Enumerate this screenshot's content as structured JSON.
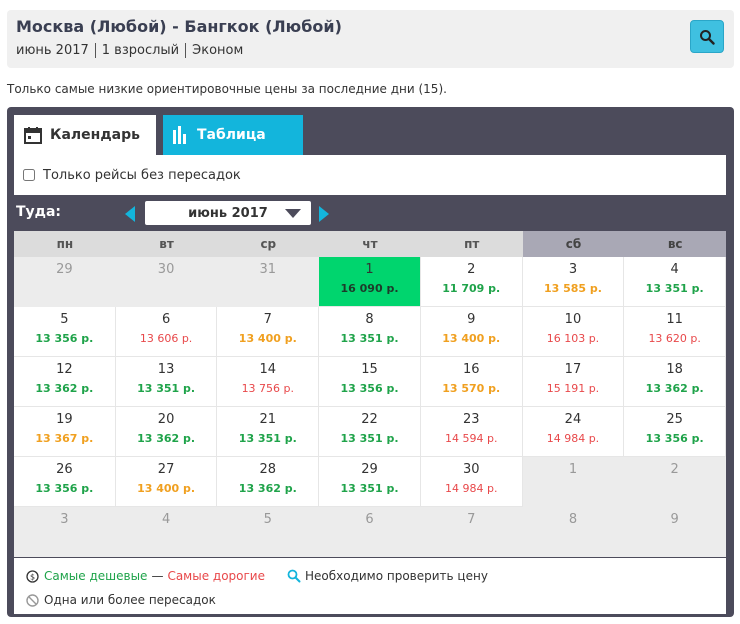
{
  "header": {
    "title": "Москва (Любой) - Бангкок (Любой)",
    "date": "июнь 2017",
    "passengers": "1 взрослый",
    "cabin": "Эконом"
  },
  "info_text": "Только самые низкие ориентировочные цены за последние дни (15).",
  "tabs": {
    "calendar": "Календарь",
    "table": "Таблица"
  },
  "filter": {
    "direct_only_label": "Только рейсы без пересадок",
    "direct_only_checked": false
  },
  "direction_label": "Туда:",
  "month_selector": "июнь 2017",
  "weekdays": [
    "пн",
    "вт",
    "ср",
    "чт",
    "пт",
    "сб",
    "вс"
  ],
  "weeks": [
    [
      {
        "day": "29",
        "other": true
      },
      {
        "day": "30",
        "other": true
      },
      {
        "day": "31",
        "other": true
      },
      {
        "day": "1",
        "price": "16 090 р.",
        "level": "selected"
      },
      {
        "day": "2",
        "price": "11 709 р.",
        "level": "green"
      },
      {
        "day": "3",
        "price": "13 585 р.",
        "level": "orange"
      },
      {
        "day": "4",
        "price": "13 351 р.",
        "level": "green"
      }
    ],
    [
      {
        "day": "5",
        "price": "13 356 р.",
        "level": "green"
      },
      {
        "day": "6",
        "price": "13 606 р.",
        "level": "red"
      },
      {
        "day": "7",
        "price": "13 400 р.",
        "level": "orange"
      },
      {
        "day": "8",
        "price": "13 351 р.",
        "level": "green"
      },
      {
        "day": "9",
        "price": "13 400 р.",
        "level": "orange"
      },
      {
        "day": "10",
        "price": "16 103 р.",
        "level": "red"
      },
      {
        "day": "11",
        "price": "13 620 р.",
        "level": "red"
      }
    ],
    [
      {
        "day": "12",
        "price": "13 362 р.",
        "level": "green"
      },
      {
        "day": "13",
        "price": "13 351 р.",
        "level": "green"
      },
      {
        "day": "14",
        "price": "13 756 р.",
        "level": "red"
      },
      {
        "day": "15",
        "price": "13 356 р.",
        "level": "green"
      },
      {
        "day": "16",
        "price": "13 570 р.",
        "level": "orange"
      },
      {
        "day": "17",
        "price": "15 191 р.",
        "level": "red"
      },
      {
        "day": "18",
        "price": "13 362 р.",
        "level": "green"
      }
    ],
    [
      {
        "day": "19",
        "price": "13 367 р.",
        "level": "orange"
      },
      {
        "day": "20",
        "price": "13 362 р.",
        "level": "green"
      },
      {
        "day": "21",
        "price": "13 351 р.",
        "level": "green"
      },
      {
        "day": "22",
        "price": "13 351 р.",
        "level": "green"
      },
      {
        "day": "23",
        "price": "14 594 р.",
        "level": "red"
      },
      {
        "day": "24",
        "price": "14 984 р.",
        "level": "red"
      },
      {
        "day": "25",
        "price": "13 356 р.",
        "level": "green"
      }
    ],
    [
      {
        "day": "26",
        "price": "13 356 р.",
        "level": "green"
      },
      {
        "day": "27",
        "price": "13 400 р.",
        "level": "orange"
      },
      {
        "day": "28",
        "price": "13 362 р.",
        "level": "green"
      },
      {
        "day": "29",
        "price": "13 351 р.",
        "level": "green"
      },
      {
        "day": "30",
        "price": "14 984 р.",
        "level": "red"
      },
      {
        "day": "1",
        "other": true
      },
      {
        "day": "2",
        "other": true
      }
    ],
    [
      {
        "day": "3",
        "other": true
      },
      {
        "day": "4",
        "other": true
      },
      {
        "day": "5",
        "other": true
      },
      {
        "day": "6",
        "other": true
      },
      {
        "day": "7",
        "other": true
      },
      {
        "day": "8",
        "other": true
      },
      {
        "day": "9",
        "other": true
      }
    ]
  ],
  "legend": {
    "cheapest": "Самые дешевые",
    "dash": "—",
    "most_expensive": "Самые дорогие",
    "check_price": "Необходимо проверить цену",
    "with_stops": "Одна или более пересадок"
  },
  "colors": {
    "panel_bg": "#4c4b5b",
    "accent": "#13b5dc",
    "selected_day": "#00d56e",
    "price_green": "#1fa34a",
    "price_orange": "#f0a020",
    "price_red": "#e8484a"
  },
  "icons": {
    "search_button": "search-icon",
    "calendar_tab": "calendar-icon",
    "table_tab": "bar-chart-icon",
    "legend_cheap": "coin-icon",
    "legend_check": "magnifier-icon",
    "legend_stops": "no-entry-icon"
  }
}
